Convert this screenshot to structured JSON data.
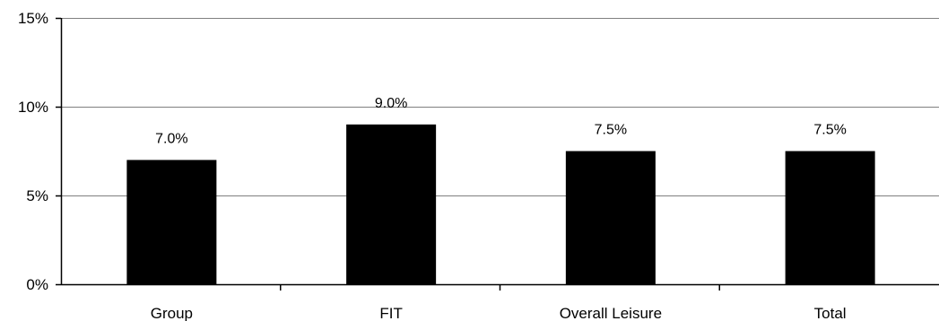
{
  "chart_data": {
    "type": "bar",
    "categories": [
      "Group",
      "FIT",
      "Overall Leisure",
      "Total"
    ],
    "series": [
      {
        "values": [
          7.0,
          9.0,
          7.5,
          7.5
        ],
        "data_labels": [
          "7.0%",
          "9.0%",
          "7.5%",
          "7.5%"
        ]
      }
    ],
    "ylim": [
      0,
      15
    ],
    "yticks": [
      0,
      5,
      10,
      15
    ],
    "ytick_labels": [
      "0%",
      "5%",
      "10%",
      "15%"
    ],
    "grid": true,
    "legend": "none",
    "colors": {
      "bar": "#000000",
      "grid": "#808080",
      "axis": "#000000",
      "background": "#ffffff"
    }
  }
}
